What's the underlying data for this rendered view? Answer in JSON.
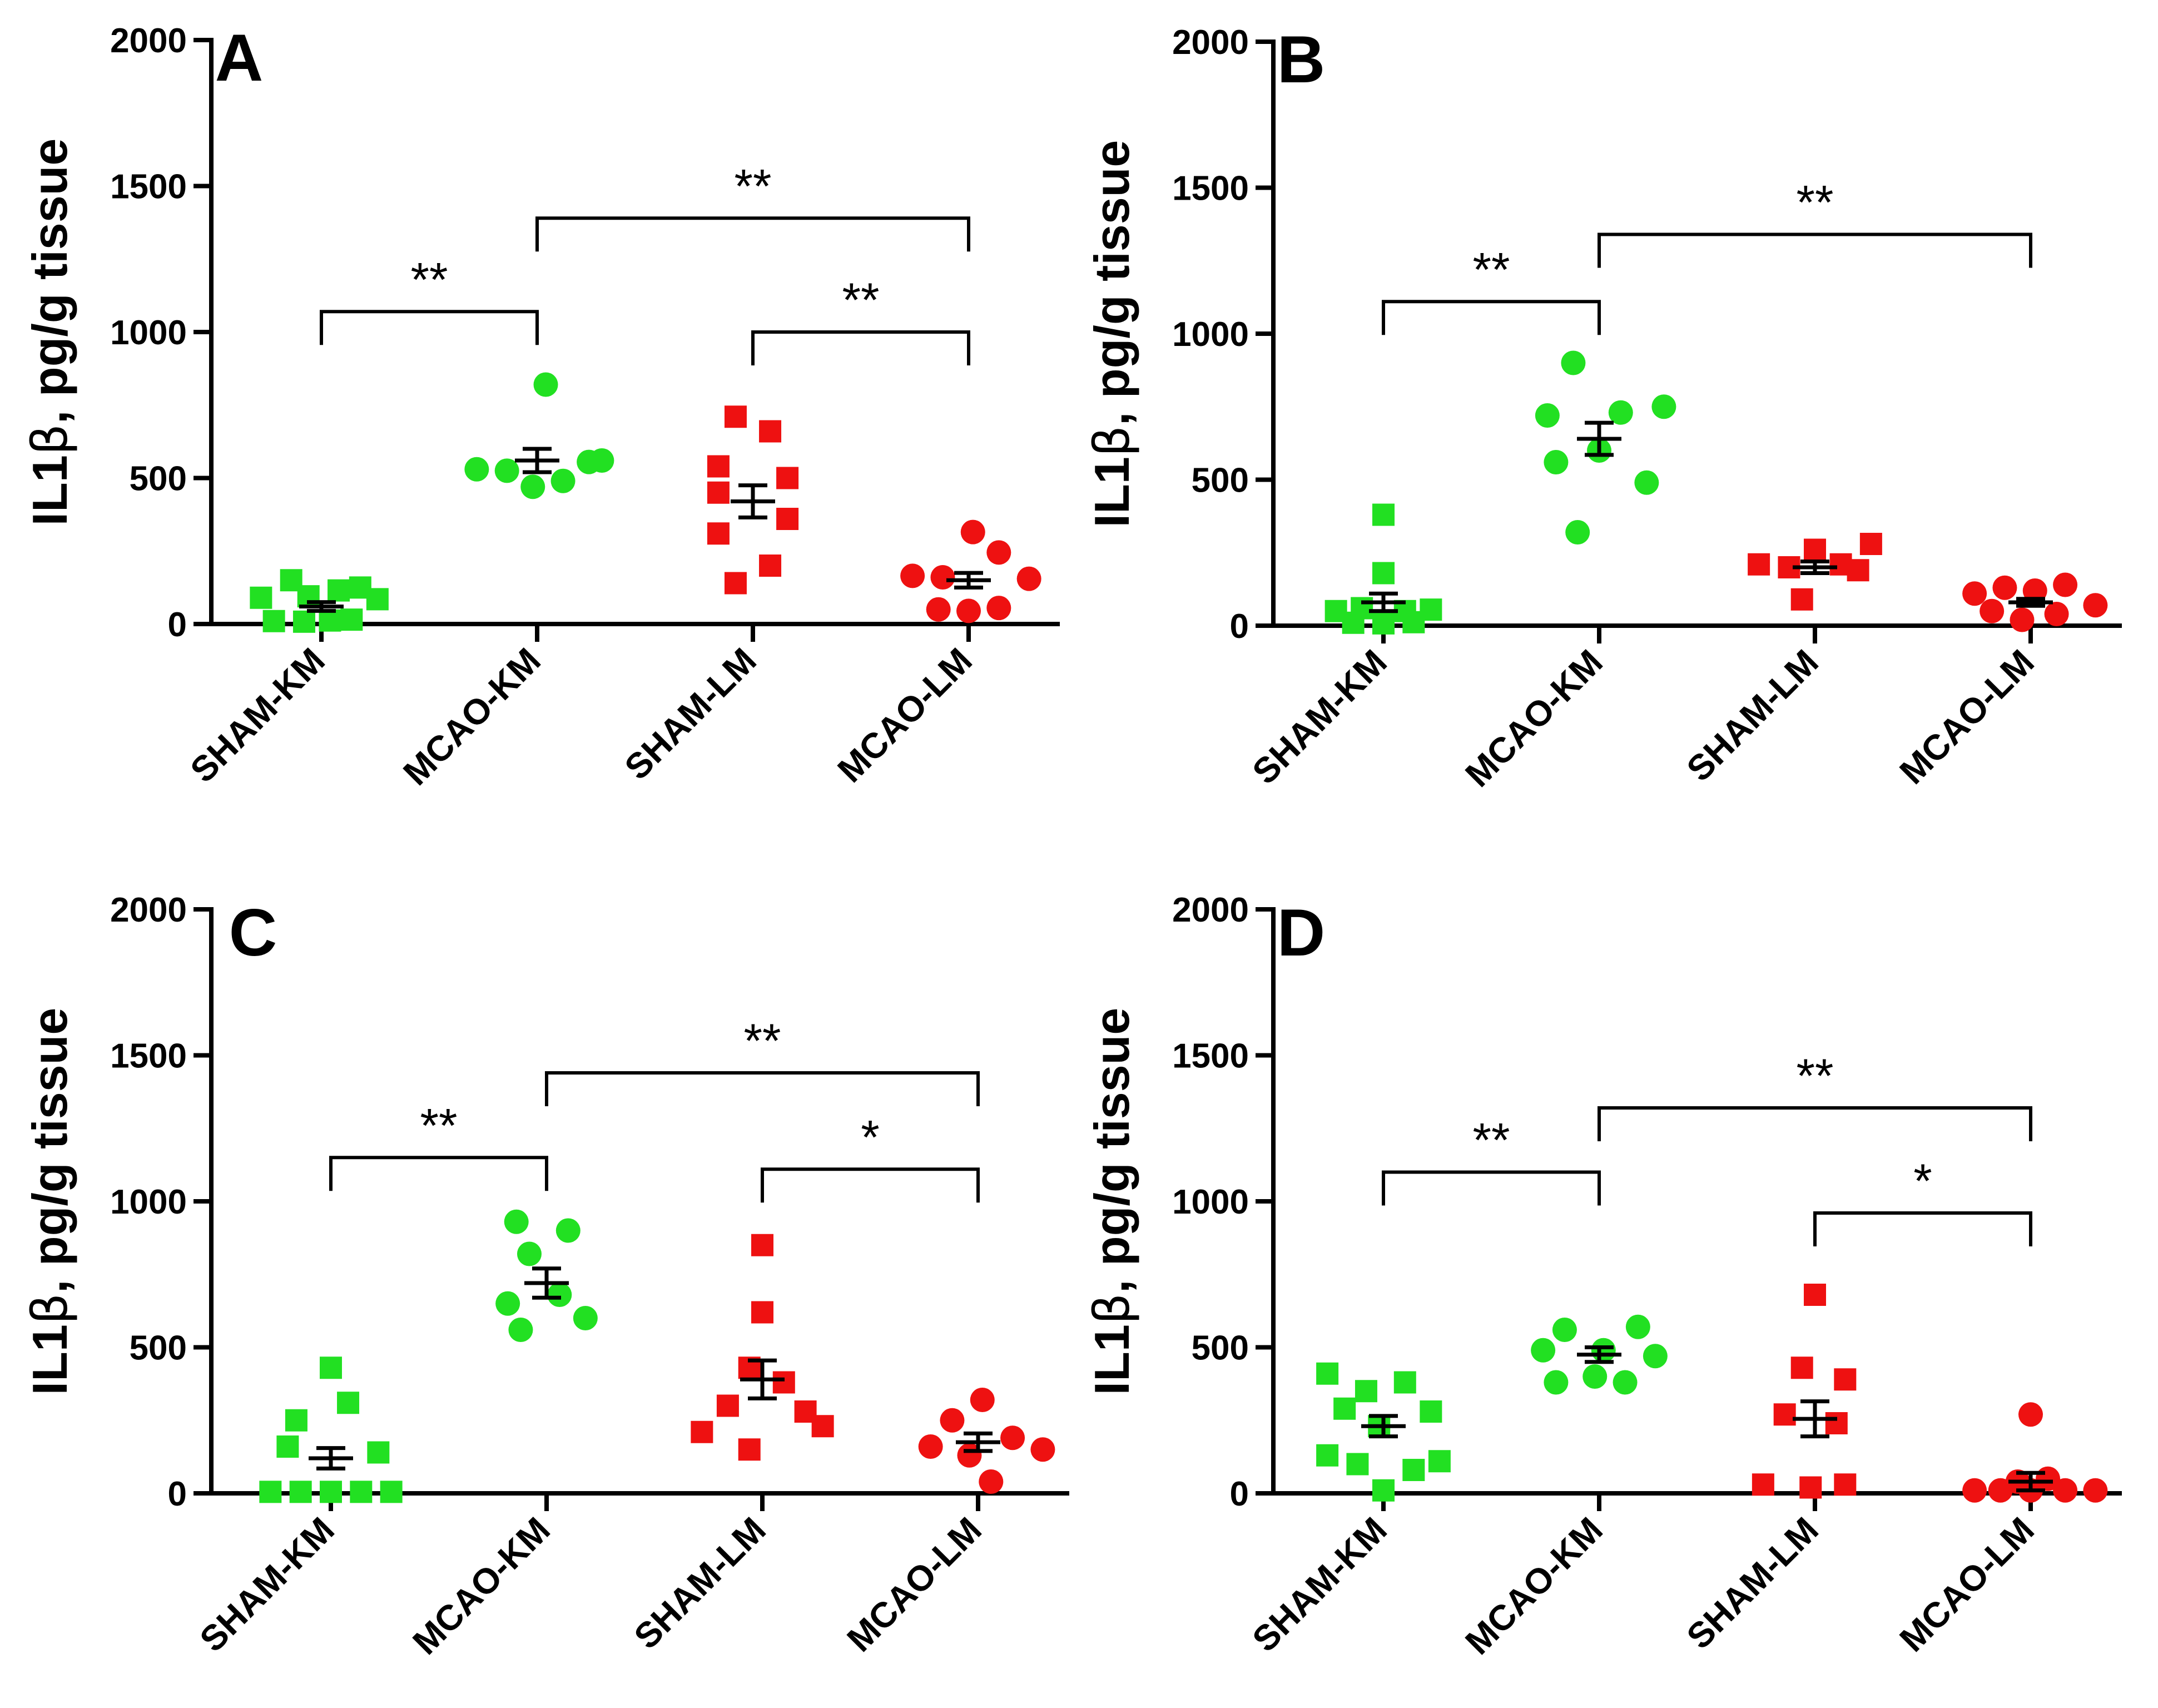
{
  "colors": {
    "km": "#22e022",
    "lm": "#ee1111",
    "axis": "#000000"
  },
  "chart_data": [
    {
      "panel": "A",
      "type": "scatter",
      "ylabel_main": "IL1",
      "ylabel_symbol": "β",
      "ylabel_rest": ", pg/g tissue",
      "ylim": [
        0,
        2000
      ],
      "yticks": [
        "0",
        "500",
        "1000",
        "1500",
        "2000"
      ],
      "categories": [
        "SHAM-KM",
        "MCAO-KM",
        "SHAM-LM",
        "MCAO-LM"
      ],
      "groups": [
        {
          "name": "SHAM-KM",
          "color": "km",
          "marker": "square",
          "mean": 60,
          "sem": 15,
          "points": [
            {
              "x": -0.28,
              "y": 90
            },
            {
              "x": -0.14,
              "y": 150
            },
            {
              "x": -0.06,
              "y": 95
            },
            {
              "x": 0.08,
              "y": 115
            },
            {
              "x": 0.18,
              "y": 125
            },
            {
              "x": 0.26,
              "y": 85
            },
            {
              "x": -0.22,
              "y": 10
            },
            {
              "x": -0.08,
              "y": 8
            },
            {
              "x": 0.04,
              "y": 12
            },
            {
              "x": 0.14,
              "y": 15
            }
          ]
        },
        {
          "name": "MCAO-KM",
          "color": "km",
          "marker": "circle",
          "mean": 560,
          "sem": 40,
          "points": [
            {
              "x": -0.28,
              "y": 530
            },
            {
              "x": -0.14,
              "y": 525
            },
            {
              "x": -0.02,
              "y": 470
            },
            {
              "x": 0.12,
              "y": 490
            },
            {
              "x": 0.24,
              "y": 555
            },
            {
              "x": 0.04,
              "y": 820
            },
            {
              "x": 0.3,
              "y": 560
            }
          ]
        },
        {
          "name": "SHAM-LM",
          "color": "lm",
          "marker": "square",
          "mean": 420,
          "sem": 55,
          "points": [
            {
              "x": -0.08,
              "y": 710
            },
            {
              "x": 0.08,
              "y": 660
            },
            {
              "x": -0.16,
              "y": 540
            },
            {
              "x": 0.16,
              "y": 500
            },
            {
              "x": -0.16,
              "y": 450
            },
            {
              "x": 0.16,
              "y": 360
            },
            {
              "x": -0.16,
              "y": 310
            },
            {
              "x": 0.08,
              "y": 200
            },
            {
              "x": -0.08,
              "y": 140
            }
          ]
        },
        {
          "name": "MCAO-LM",
          "color": "lm",
          "marker": "circle",
          "mean": 150,
          "sem": 25,
          "points": [
            {
              "x": -0.26,
              "y": 165
            },
            {
              "x": -0.12,
              "y": 160
            },
            {
              "x": 0.02,
              "y": 315
            },
            {
              "x": 0.14,
              "y": 245
            },
            {
              "x": 0.28,
              "y": 155
            },
            {
              "x": -0.14,
              "y": 50
            },
            {
              "x": 0.0,
              "y": 45
            },
            {
              "x": 0.14,
              "y": 55
            }
          ]
        }
      ],
      "significance": [
        {
          "from": 0,
          "to": 1,
          "y": 1070,
          "label": "**"
        },
        {
          "from": 1,
          "to": 3,
          "y": 1390,
          "label": "**"
        },
        {
          "from": 2,
          "to": 3,
          "y": 1000,
          "label": "**"
        }
      ]
    },
    {
      "panel": "B",
      "type": "scatter",
      "ylabel_main": "IL1",
      "ylabel_symbol": "β",
      "ylabel_rest": ", pg/g tissue",
      "ylim": [
        0,
        2000
      ],
      "yticks": [
        "0",
        "500",
        "1000",
        "1500",
        "2000"
      ],
      "categories": [
        "SHAM-KM",
        "MCAO-KM",
        "SHAM-LM",
        "MCAO-LM"
      ],
      "groups": [
        {
          "name": "SHAM-KM",
          "color": "km",
          "marker": "square",
          "mean": 80,
          "sem": 30,
          "points": [
            {
              "x": 0.0,
              "y": 380
            },
            {
              "x": 0.0,
              "y": 180
            },
            {
              "x": -0.22,
              "y": 50
            },
            {
              "x": -0.1,
              "y": 60
            },
            {
              "x": 0.1,
              "y": 50
            },
            {
              "x": 0.22,
              "y": 55
            },
            {
              "x": -0.14,
              "y": 10
            },
            {
              "x": 0.0,
              "y": 8
            },
            {
              "x": 0.14,
              "y": 12
            }
          ]
        },
        {
          "name": "MCAO-KM",
          "color": "km",
          "marker": "circle",
          "mean": 640,
          "sem": 55,
          "points": [
            {
              "x": -0.12,
              "y": 900
            },
            {
              "x": -0.24,
              "y": 720
            },
            {
              "x": 0.1,
              "y": 730
            },
            {
              "x": 0.3,
              "y": 750
            },
            {
              "x": -0.2,
              "y": 560
            },
            {
              "x": 0.0,
              "y": 600
            },
            {
              "x": 0.22,
              "y": 490
            },
            {
              "x": -0.1,
              "y": 320
            }
          ]
        },
        {
          "name": "SHAM-LM",
          "color": "lm",
          "marker": "square",
          "mean": 200,
          "sem": 20,
          "points": [
            {
              "x": -0.26,
              "y": 210
            },
            {
              "x": -0.12,
              "y": 200
            },
            {
              "x": 0.0,
              "y": 260
            },
            {
              "x": 0.12,
              "y": 210
            },
            {
              "x": 0.26,
              "y": 280
            },
            {
              "x": 0.2,
              "y": 190
            },
            {
              "x": -0.06,
              "y": 90
            }
          ]
        },
        {
          "name": "MCAO-LM",
          "color": "lm",
          "marker": "circle",
          "mean": 80,
          "sem": 12,
          "points": [
            {
              "x": -0.26,
              "y": 110
            },
            {
              "x": -0.12,
              "y": 130
            },
            {
              "x": 0.02,
              "y": 120
            },
            {
              "x": 0.16,
              "y": 140
            },
            {
              "x": 0.3,
              "y": 70
            },
            {
              "x": -0.18,
              "y": 50
            },
            {
              "x": -0.04,
              "y": 20
            },
            {
              "x": 0.12,
              "y": 40
            }
          ]
        }
      ],
      "significance": [
        {
          "from": 0,
          "to": 1,
          "y": 1110,
          "label": "**"
        },
        {
          "from": 1,
          "to": 3,
          "y": 1340,
          "label": "**"
        }
      ]
    },
    {
      "panel": "C",
      "type": "scatter",
      "ylabel_main": "IL1",
      "ylabel_symbol": "β",
      "ylabel_rest": ", pg/g tissue",
      "ylim": [
        0,
        2000
      ],
      "yticks": [
        "0",
        "500",
        "1000",
        "1500",
        "2000"
      ],
      "categories": [
        "SHAM-KM",
        "MCAO-KM",
        "SHAM-LM",
        "MCAO-LM"
      ],
      "groups": [
        {
          "name": "SHAM-KM",
          "color": "km",
          "marker": "square",
          "mean": 120,
          "sem": 35,
          "points": [
            {
              "x": 0.0,
              "y": 430
            },
            {
              "x": 0.08,
              "y": 310
            },
            {
              "x": -0.16,
              "y": 250
            },
            {
              "x": -0.2,
              "y": 160
            },
            {
              "x": 0.22,
              "y": 140
            },
            {
              "x": -0.28,
              "y": 5
            },
            {
              "x": -0.14,
              "y": 5
            },
            {
              "x": 0.0,
              "y": 5
            },
            {
              "x": 0.14,
              "y": 5
            },
            {
              "x": 0.28,
              "y": 5
            }
          ]
        },
        {
          "name": "MCAO-KM",
          "color": "km",
          "marker": "circle",
          "mean": 720,
          "sem": 50,
          "points": [
            {
              "x": -0.14,
              "y": 930
            },
            {
              "x": 0.1,
              "y": 900
            },
            {
              "x": -0.08,
              "y": 820
            },
            {
              "x": 0.06,
              "y": 680
            },
            {
              "x": -0.18,
              "y": 650
            },
            {
              "x": 0.18,
              "y": 600
            },
            {
              "x": -0.12,
              "y": 560
            }
          ]
        },
        {
          "name": "SHAM-LM",
          "color": "lm",
          "marker": "square",
          "mean": 390,
          "sem": 65,
          "points": [
            {
              "x": 0.0,
              "y": 850
            },
            {
              "x": 0.0,
              "y": 620
            },
            {
              "x": -0.06,
              "y": 430
            },
            {
              "x": 0.1,
              "y": 380
            },
            {
              "x": -0.16,
              "y": 300
            },
            {
              "x": 0.2,
              "y": 280
            },
            {
              "x": -0.28,
              "y": 210
            },
            {
              "x": 0.28,
              "y": 230
            },
            {
              "x": -0.06,
              "y": 150
            }
          ]
        },
        {
          "name": "MCAO-LM",
          "color": "lm",
          "marker": "circle",
          "mean": 175,
          "sem": 30,
          "points": [
            {
              "x": 0.02,
              "y": 320
            },
            {
              "x": -0.12,
              "y": 250
            },
            {
              "x": -0.22,
              "y": 160
            },
            {
              "x": 0.16,
              "y": 190
            },
            {
              "x": 0.3,
              "y": 150
            },
            {
              "x": -0.04,
              "y": 130
            },
            {
              "x": 0.06,
              "y": 40
            }
          ]
        }
      ],
      "significance": [
        {
          "from": 0,
          "to": 1,
          "y": 1150,
          "label": "**"
        },
        {
          "from": 1,
          "to": 3,
          "y": 1440,
          "label": "**"
        },
        {
          "from": 2,
          "to": 3,
          "y": 1110,
          "label": "*"
        }
      ]
    },
    {
      "panel": "D",
      "type": "scatter",
      "ylabel_main": "IL1",
      "ylabel_symbol": "β",
      "ylabel_rest": ", pg/g tissue",
      "ylim": [
        0,
        2000
      ],
      "yticks": [
        "0",
        "500",
        "1000",
        "1500",
        "2000"
      ],
      "categories": [
        "SHAM-KM",
        "MCAO-KM",
        "SHAM-LM",
        "MCAO-LM"
      ],
      "groups": [
        {
          "name": "SHAM-KM",
          "color": "km",
          "marker": "square",
          "mean": 230,
          "sem": 35,
          "points": [
            {
              "x": -0.26,
              "y": 410
            },
            {
              "x": -0.08,
              "y": 350
            },
            {
              "x": 0.1,
              "y": 380
            },
            {
              "x": -0.18,
              "y": 290
            },
            {
              "x": 0.22,
              "y": 280
            },
            {
              "x": -0.02,
              "y": 230
            },
            {
              "x": -0.26,
              "y": 130
            },
            {
              "x": -0.12,
              "y": 100
            },
            {
              "x": 0.14,
              "y": 80
            },
            {
              "x": 0.26,
              "y": 110
            },
            {
              "x": 0.0,
              "y": 10
            }
          ]
        },
        {
          "name": "MCAO-KM",
          "color": "km",
          "marker": "circle",
          "mean": 475,
          "sem": 25,
          "points": [
            {
              "x": -0.16,
              "y": 560
            },
            {
              "x": 0.18,
              "y": 570
            },
            {
              "x": -0.26,
              "y": 490
            },
            {
              "x": 0.02,
              "y": 490
            },
            {
              "x": 0.26,
              "y": 470
            },
            {
              "x": -0.02,
              "y": 400
            },
            {
              "x": -0.2,
              "y": 380
            },
            {
              "x": 0.12,
              "y": 380
            }
          ]
        },
        {
          "name": "SHAM-LM",
          "color": "lm",
          "marker": "square",
          "mean": 255,
          "sem": 60,
          "points": [
            {
              "x": 0.0,
              "y": 680
            },
            {
              "x": -0.06,
              "y": 430
            },
            {
              "x": 0.14,
              "y": 390
            },
            {
              "x": -0.14,
              "y": 270
            },
            {
              "x": 0.1,
              "y": 240
            },
            {
              "x": -0.24,
              "y": 30
            },
            {
              "x": -0.02,
              "y": 20
            },
            {
              "x": 0.14,
              "y": 30
            }
          ]
        },
        {
          "name": "MCAO-LM",
          "color": "lm",
          "marker": "circle",
          "mean": 40,
          "sem": 30,
          "points": [
            {
              "x": 0.0,
              "y": 270
            },
            {
              "x": -0.06,
              "y": 40
            },
            {
              "x": 0.08,
              "y": 50
            },
            {
              "x": -0.26,
              "y": 10
            },
            {
              "x": -0.14,
              "y": 10
            },
            {
              "x": 0.0,
              "y": 10
            },
            {
              "x": 0.16,
              "y": 10
            },
            {
              "x": 0.3,
              "y": 10
            }
          ]
        }
      ],
      "significance": [
        {
          "from": 0,
          "to": 1,
          "y": 1100,
          "label": "**"
        },
        {
          "from": 1,
          "to": 3,
          "y": 1320,
          "label": "**"
        },
        {
          "from": 2,
          "to": 3,
          "y": 960,
          "label": "*"
        }
      ]
    }
  ]
}
